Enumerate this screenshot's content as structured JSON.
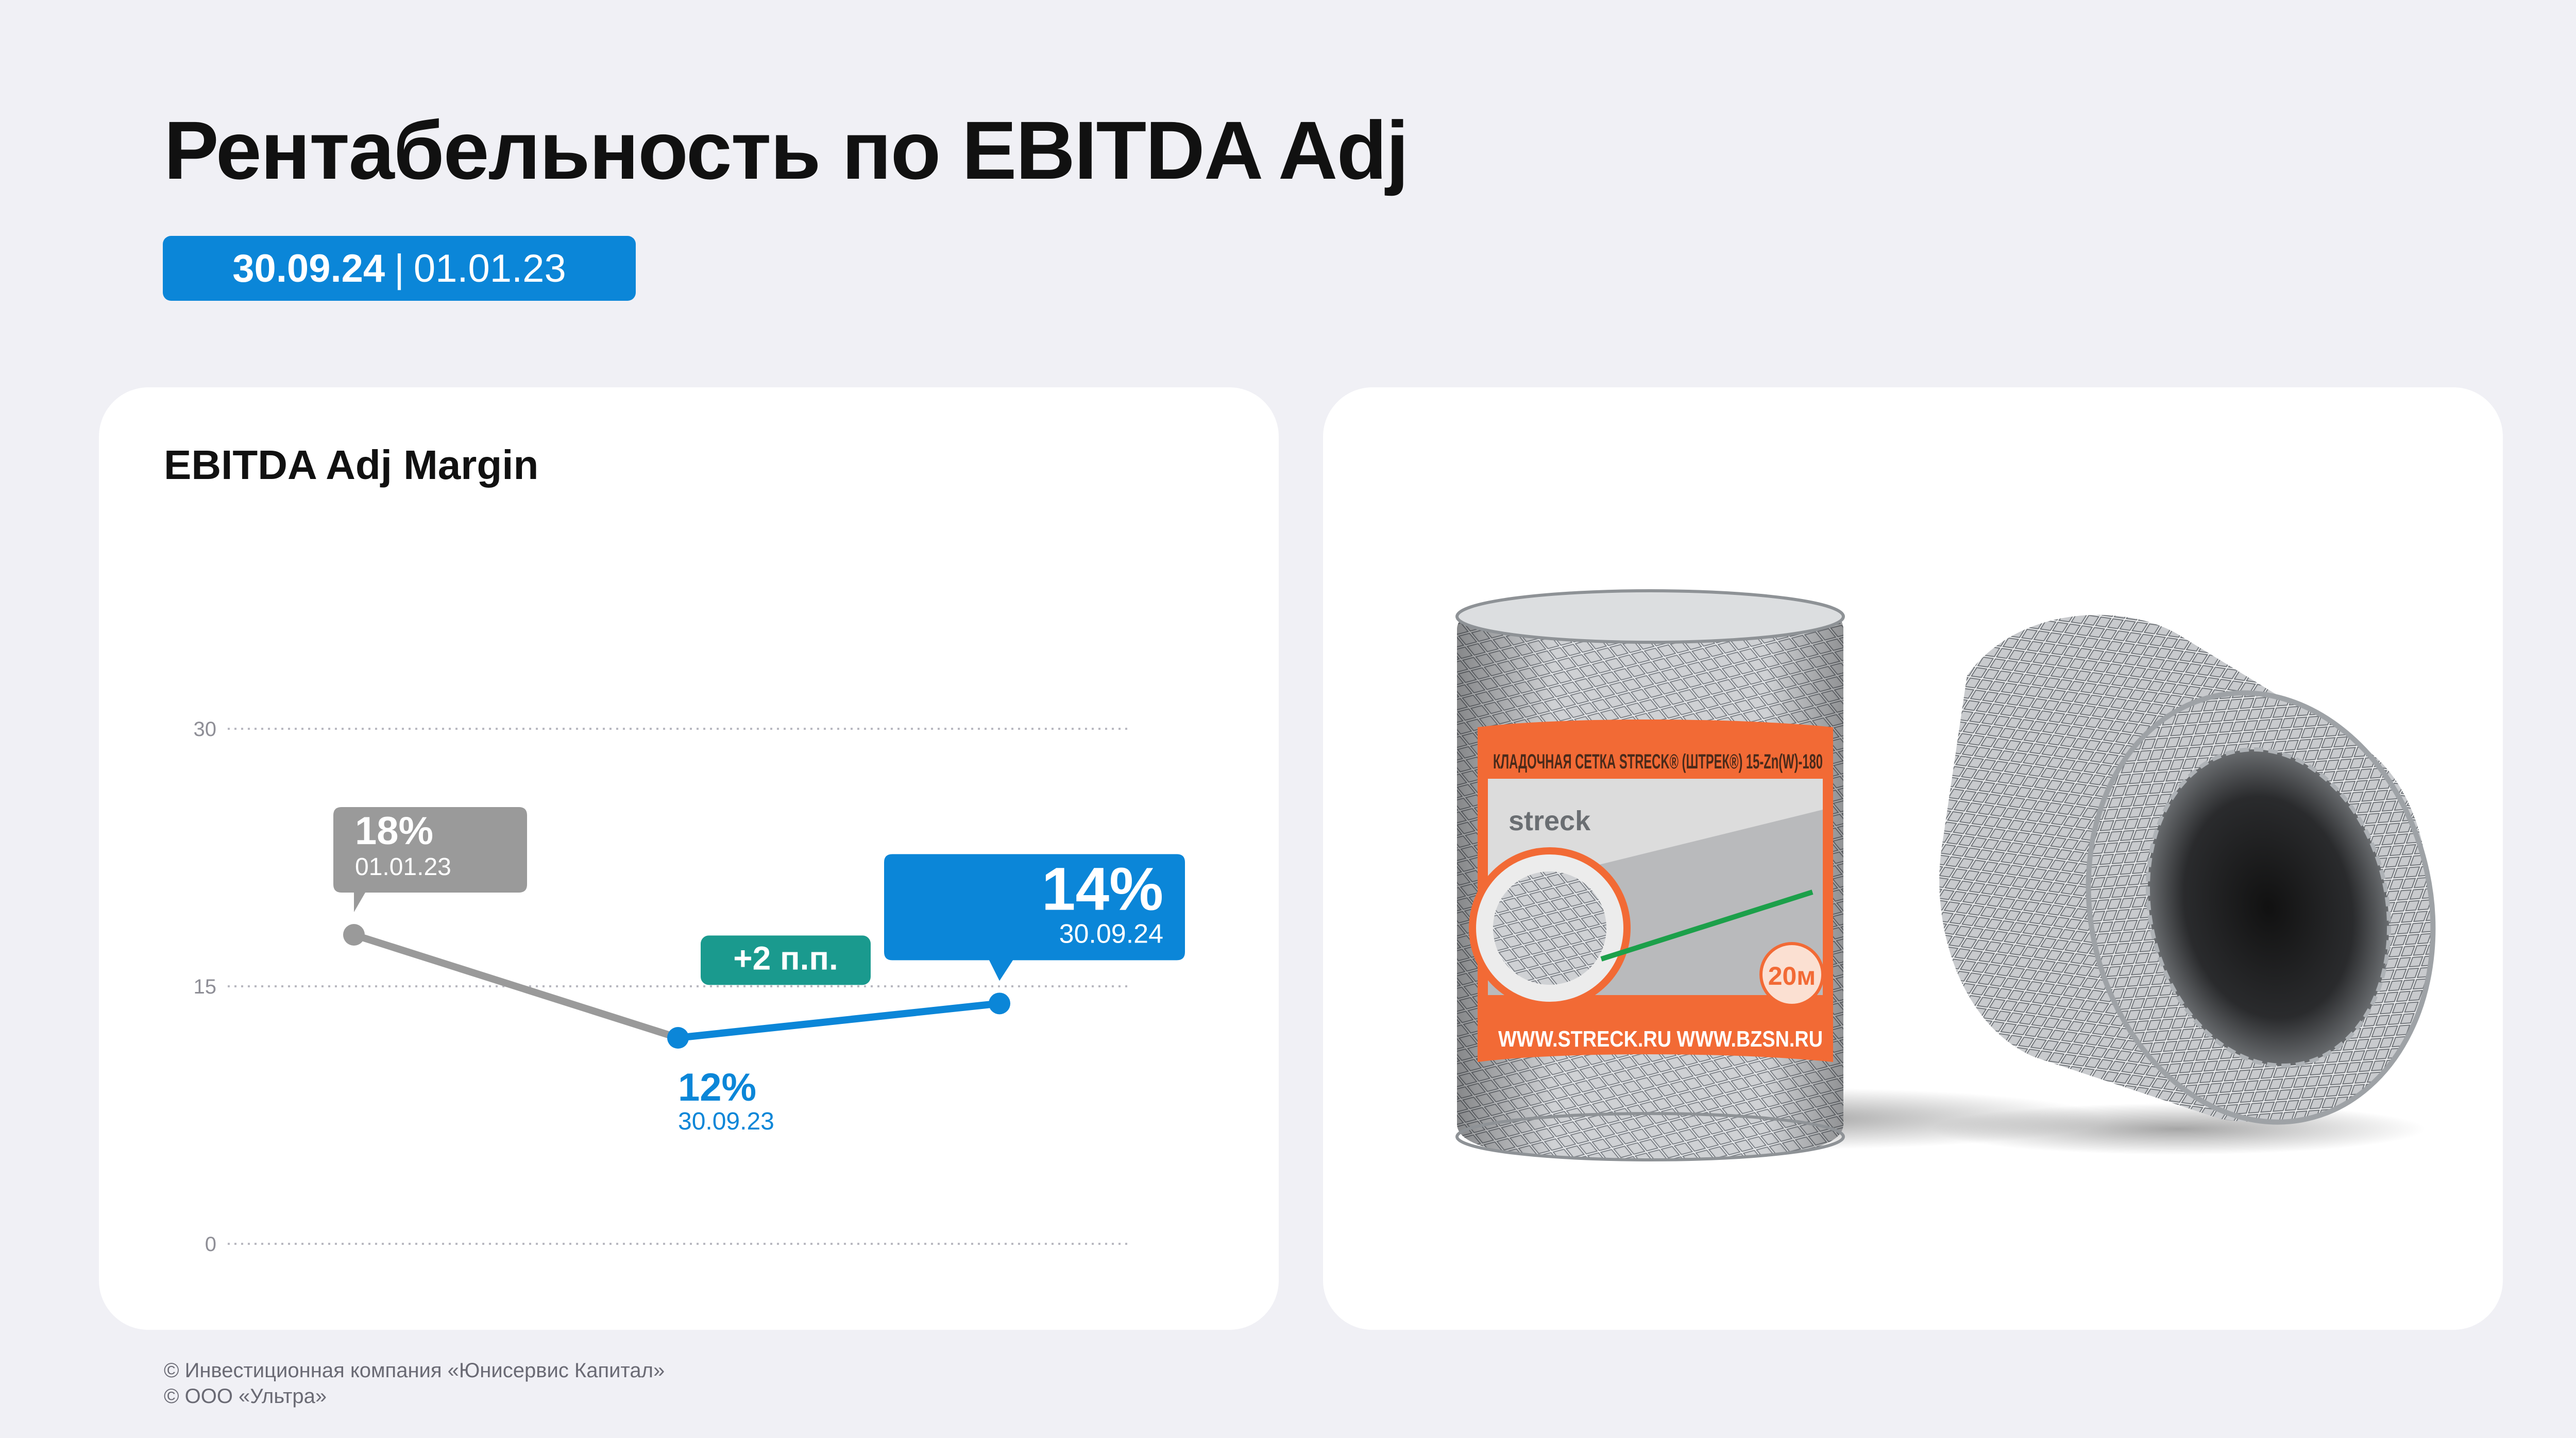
{
  "page": {
    "title": "Рентабельность по EBITDA Adj",
    "date_current": "30.09.24",
    "date_separator": "|",
    "date_base": "01.01.23"
  },
  "chart_card": {
    "title": "EBITDA Adj Margin"
  },
  "chart_data": {
    "type": "line",
    "title": "EBITDA Adj Margin",
    "ylim": [
      0,
      30
    ],
    "yticks": [
      "0",
      "15",
      "30"
    ],
    "grid": true,
    "points": [
      {
        "date": "01.01.23",
        "value": 18,
        "label": "18%",
        "color": "#9a9a9a"
      },
      {
        "date": "30.09.23",
        "value": 12,
        "label": "12%",
        "color": "#0b86d8"
      },
      {
        "date": "30.09.24",
        "value": 14,
        "label": "14%",
        "color": "#0b86d8"
      }
    ],
    "change_badge": {
      "text": "+2 п.п.",
      "color": "#1a9a8e"
    },
    "colors": {
      "base": "#9a9a9a",
      "current": "#0b86d8",
      "grid": "#b8b8c0",
      "tick": "#8e8e96"
    }
  },
  "image_card": {
    "photo": "rolls of expanded metal mesh",
    "package_band_text": "КЛАДОЧНАЯ СЕТКА STRECK® (ШТРЕК®) 15-Zn(W)-180",
    "brand": "streck",
    "length_badge": "20м",
    "urls": "WWW.STRECK.RU   WWW.BZSN.RU"
  },
  "footer": {
    "line1": "© Инвестиционная компания «Юнисервис Капитал»",
    "line2": "© ООО «Ультра»"
  }
}
